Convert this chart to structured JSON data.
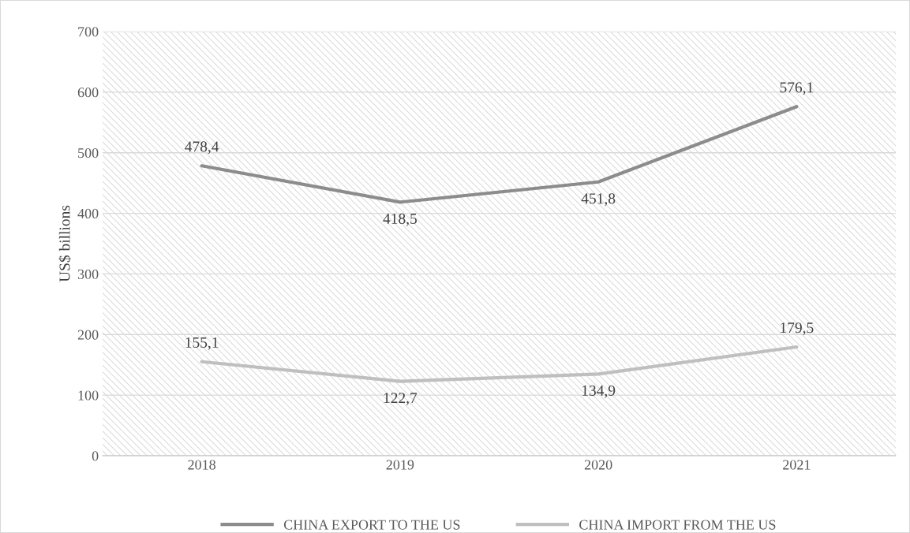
{
  "chart_data": {
    "type": "line",
    "ylabel": "US$ billions",
    "categories": [
      "2018",
      "2019",
      "2020",
      "2021"
    ],
    "series": [
      {
        "name": "CHINA EXPORT TO THE US",
        "color": "#8c8c8c",
        "values": [
          478.4,
          418.5,
          451.8,
          576.1
        ],
        "value_labels": [
          "478,4",
          "418,5",
          "451,8",
          "576,1"
        ]
      },
      {
        "name": "CHINA IMPORT FROM THE US",
        "color": "#bfbfbf",
        "values": [
          155.1,
          122.7,
          134.9,
          179.5
        ],
        "value_labels": [
          "155,1",
          "122,7",
          "134,9",
          "179,5"
        ]
      }
    ],
    "ylim": [
      0,
      700
    ],
    "yticks": [
      0,
      100,
      200,
      300,
      400,
      500,
      600,
      700
    ],
    "grid": "y",
    "legend": "bottom",
    "marker": "none",
    "line_style": "solid"
  }
}
